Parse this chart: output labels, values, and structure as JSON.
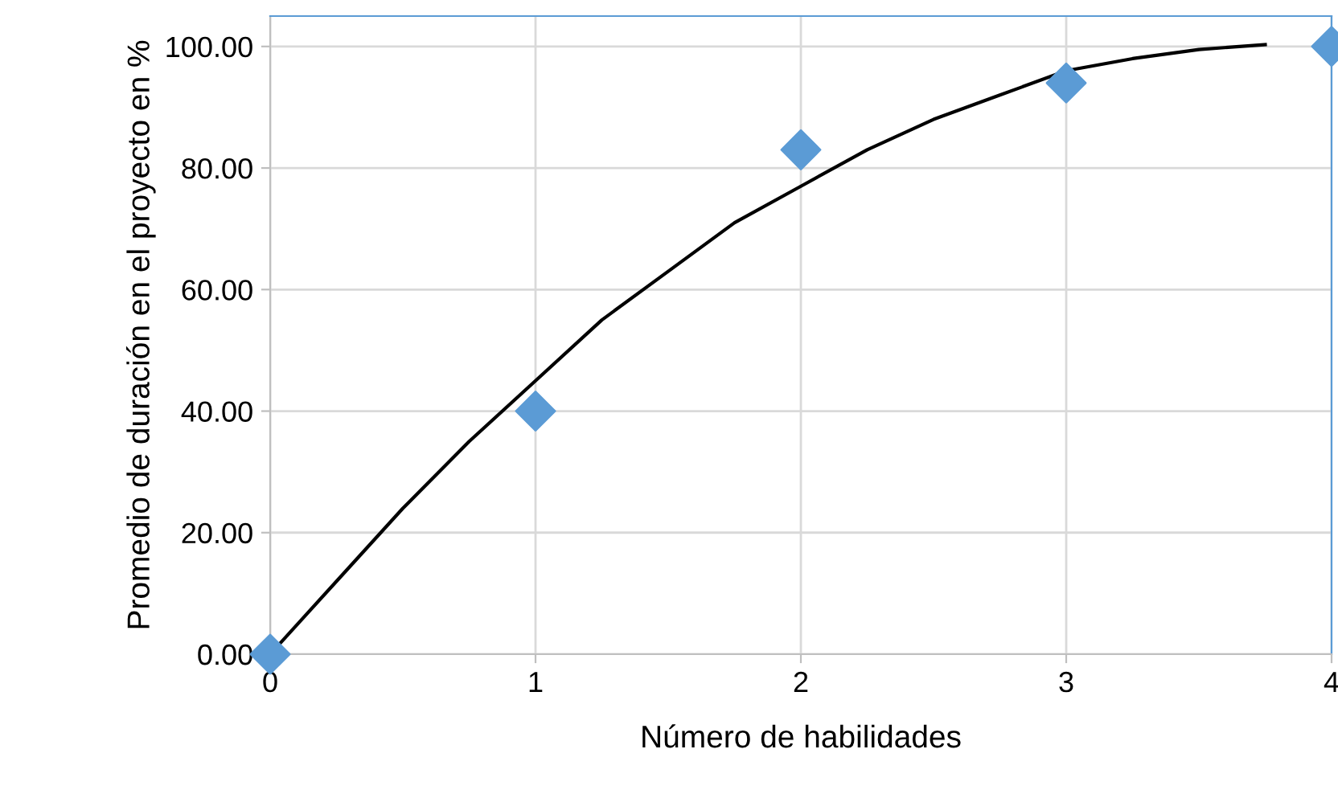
{
  "chart_data": {
    "type": "scatter",
    "xlabel": "Número de habilidades",
    "ylabel": "Promedio de duración en el proyecto en %",
    "series": [
      {
        "color": "#5b9bd5",
        "marker": "diamond",
        "x": [
          0,
          1,
          2,
          3,
          4
        ],
        "values": [
          0,
          40,
          83,
          94,
          100
        ]
      },
      {
        "type": "line",
        "color": "#000000",
        "marker": "none",
        "line_style": "solid",
        "x": [
          0,
          0.25,
          0.5,
          0.75,
          1,
          1.25,
          1.5,
          1.75,
          2,
          2.25,
          2.5,
          2.75,
          3,
          3.25,
          3.5,
          3.75
        ],
        "values": [
          0,
          12,
          24,
          35,
          45,
          55,
          63,
          71,
          77,
          83,
          88,
          92,
          96,
          98,
          99.5,
          100.3
        ]
      }
    ],
    "xlim": [
      0,
      4
    ],
    "xticks": [
      0,
      1,
      2,
      3,
      4
    ],
    "ylim": [
      0,
      105
    ],
    "yticks": [
      {
        "value": 0,
        "label": "0.00"
      },
      {
        "value": 20,
        "label": "20.00"
      },
      {
        "value": 40,
        "label": "40.00"
      },
      {
        "value": 60,
        "label": "60.00"
      },
      {
        "value": 80,
        "label": "80.00"
      },
      {
        "value": 100,
        "label": "100.00"
      }
    ],
    "grid": true
  }
}
